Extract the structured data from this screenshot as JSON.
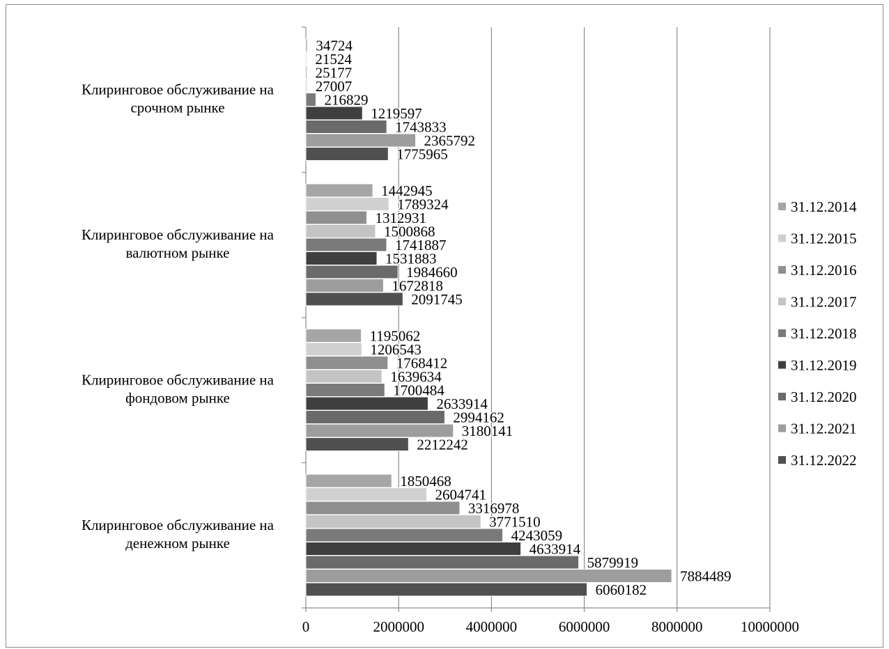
{
  "chart_data": {
    "type": "bar",
    "orientation": "horizontal",
    "title": "",
    "xlabel": "",
    "ylabel": "",
    "xlim": [
      0,
      10000000
    ],
    "x_ticks": [
      "0",
      "2000000",
      "4000000",
      "6000000",
      "8000000",
      "10000000"
    ],
    "grid": "vertical",
    "legend_position": "right",
    "categories": [
      [
        "Клиринговое обслуживание на",
        "срочном рынке"
      ],
      [
        "Клиринговое  обслуживание на",
        "валютном рынке"
      ],
      [
        "Клиринговое обслуживание на",
        "фондовом рынке"
      ],
      [
        "Клиринговое обслуживание на",
        "денежном рынке"
      ]
    ],
    "series": [
      {
        "name": "31.12.2014",
        "color": "#a6a6a6",
        "values": [
          34724,
          1442945,
          1195062,
          1850468
        ]
      },
      {
        "name": "31.12.2015",
        "color": "#d0d0d0",
        "values": [
          21524,
          1789324,
          1206543,
          2604741
        ]
      },
      {
        "name": "31.12.2016",
        "color": "#8f8f8f",
        "values": [
          25177,
          1312931,
          1768412,
          3316978
        ]
      },
      {
        "name": "31.12.2017",
        "color": "#c4c4c4",
        "values": [
          27007,
          1500868,
          1639634,
          3771510
        ]
      },
      {
        "name": "31.12.2018",
        "color": "#7a7a7a",
        "values": [
          216829,
          1741887,
          1700484,
          4243059
        ]
      },
      {
        "name": "31.12.2019",
        "color": "#3f3f3f",
        "values": [
          1219597,
          1531883,
          2633914,
          4633914
        ]
      },
      {
        "name": "31.12.2020",
        "color": "#6a6a6a",
        "values": [
          1743833,
          1984660,
          2994162,
          5879919
        ]
      },
      {
        "name": "31.12.2021",
        "color": "#9d9d9d",
        "values": [
          2365792,
          1672818,
          3180141,
          7884489
        ]
      },
      {
        "name": "31.12.2022",
        "color": "#505050",
        "values": [
          1775965,
          2091745,
          2212242,
          6060182
        ]
      }
    ]
  }
}
